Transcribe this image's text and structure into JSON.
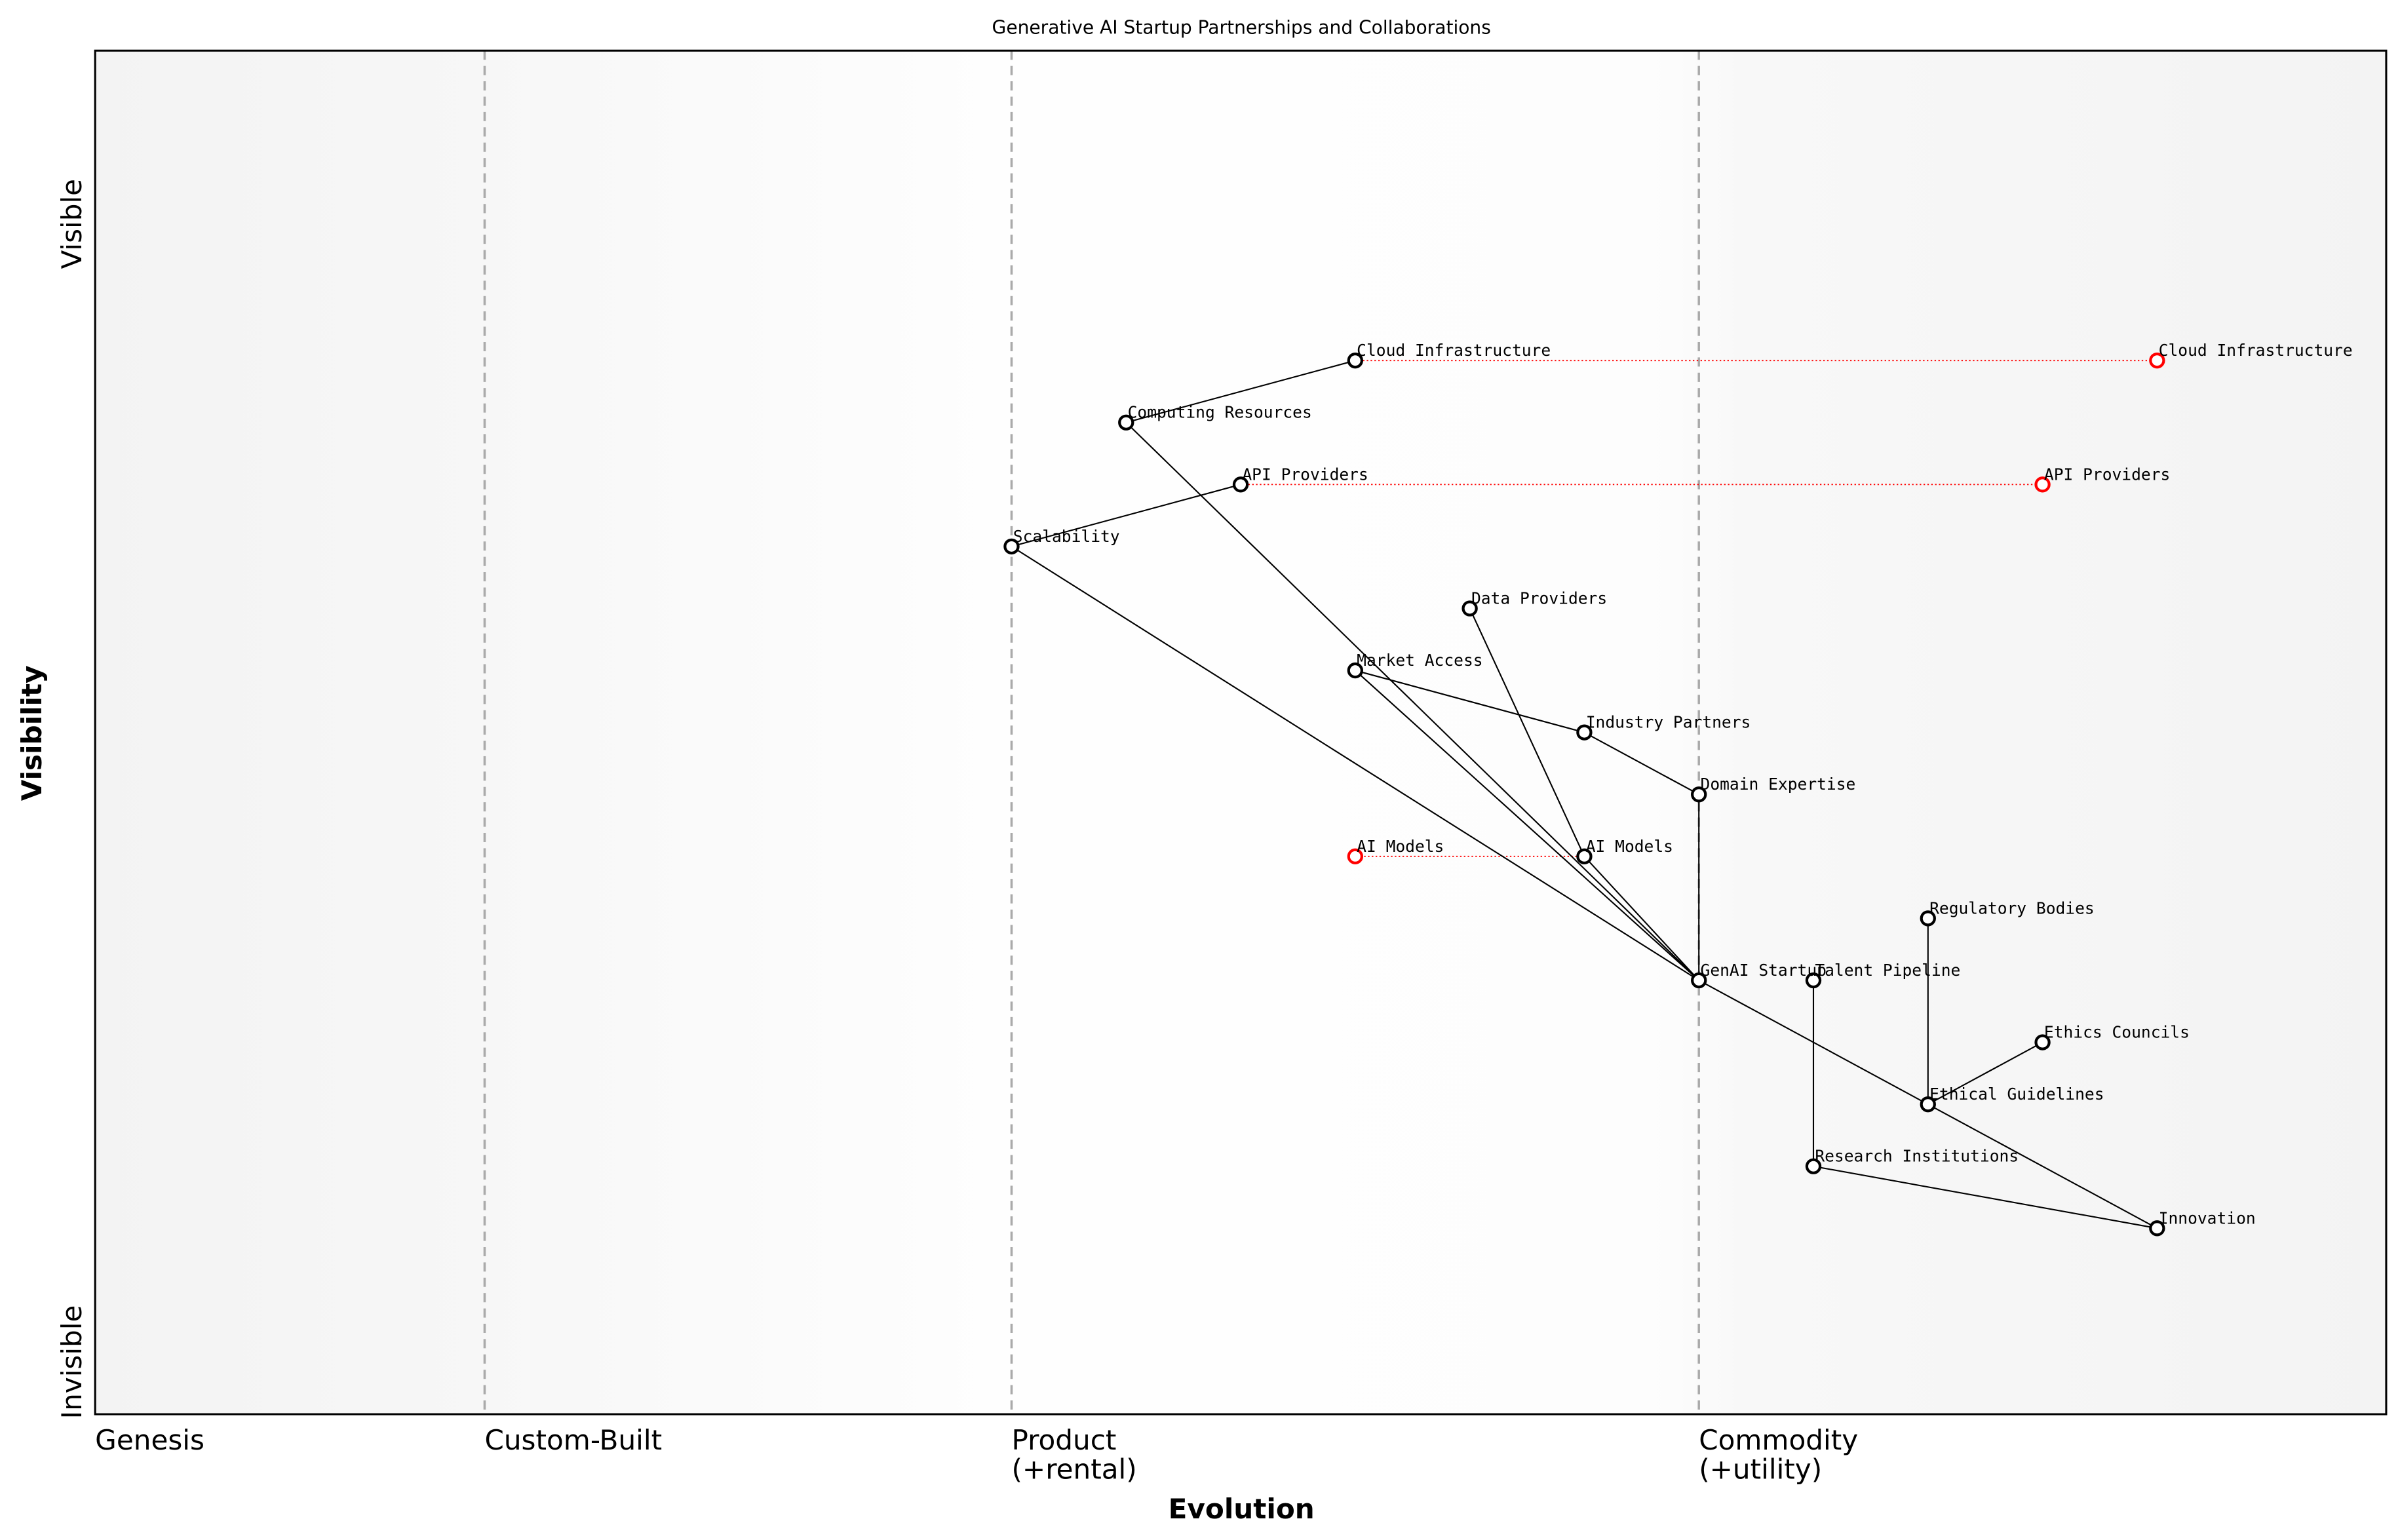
{
  "chart_data": {
    "type": "wardley-map",
    "title": "Generative AI Startup Partnerships and Collaborations",
    "xlabel": "Evolution",
    "ylabel": "Visibility",
    "xlim": [
      0,
      1
    ],
    "ylim": [
      0,
      1.1
    ],
    "y_ends": {
      "top": "Visible",
      "bottom": "Invisible"
    },
    "stages": [
      {
        "label": "Genesis",
        "x": 0
      },
      {
        "label": "Custom-Built",
        "x": 0.17
      },
      {
        "label": "Product\n(+rental)",
        "x": 0.4
      },
      {
        "label": "Commodity\n(+utility)",
        "x": 0.7
      }
    ],
    "components": [
      {
        "name": "Cloud Infrastructure",
        "x": 0.55,
        "y": 0.85
      },
      {
        "name": "Computing Resources",
        "x": 0.45,
        "y": 0.8
      },
      {
        "name": "API Providers",
        "x": 0.5,
        "y": 0.75
      },
      {
        "name": "Scalability",
        "x": 0.4,
        "y": 0.7
      },
      {
        "name": "Data Providers",
        "x": 0.6,
        "y": 0.65
      },
      {
        "name": "Market Access",
        "x": 0.55,
        "y": 0.6
      },
      {
        "name": "Industry Partners",
        "x": 0.65,
        "y": 0.55
      },
      {
        "name": "Domain Expertise",
        "x": 0.7,
        "y": 0.5
      },
      {
        "name": "AI Models",
        "x": 0.65,
        "y": 0.45
      },
      {
        "name": "Regulatory Bodies",
        "x": 0.8,
        "y": 0.4
      },
      {
        "name": "GenAI Startup",
        "x": 0.7,
        "y": 0.35
      },
      {
        "name": "Talent Pipeline",
        "x": 0.75,
        "y": 0.35
      },
      {
        "name": "Ethics Councils",
        "x": 0.85,
        "y": 0.3
      },
      {
        "name": "Ethical Guidelines",
        "x": 0.8,
        "y": 0.25
      },
      {
        "name": "Research Institutions",
        "x": 0.75,
        "y": 0.2
      },
      {
        "name": "Innovation",
        "x": 0.9,
        "y": 0.15
      }
    ],
    "links": [
      [
        "Cloud Infrastructure",
        "Computing Resources"
      ],
      [
        "Computing Resources",
        "GenAI Startup"
      ],
      [
        "API Providers",
        "Scalability"
      ],
      [
        "Scalability",
        "GenAI Startup"
      ],
      [
        "Market Access",
        "GenAI Startup"
      ],
      [
        "Market Access",
        "Industry Partners"
      ],
      [
        "Industry Partners",
        "Domain Expertise"
      ],
      [
        "Domain Expertise",
        "GenAI Startup"
      ],
      [
        "Data Providers",
        "AI Models"
      ],
      [
        "AI Models",
        "GenAI Startup"
      ],
      [
        "GenAI Startup",
        "Ethical Guidelines"
      ],
      [
        "Ethical Guidelines",
        "Innovation"
      ],
      [
        "Regulatory Bodies",
        "Ethical Guidelines"
      ],
      [
        "Ethical Guidelines",
        "Ethics Councils"
      ],
      [
        "Talent Pipeline",
        "Research Institutions"
      ],
      [
        "Research Institutions",
        "Innovation"
      ]
    ],
    "evolutions": [
      {
        "name": "Cloud Infrastructure",
        "from_x": 0.55,
        "to_x": 0.9,
        "y": 0.85
      },
      {
        "name": "API Providers",
        "from_x": 0.5,
        "to_x": 0.85,
        "y": 0.75
      },
      {
        "name": "AI Models",
        "from_x": 0.65,
        "to_x": 0.55,
        "y": 0.45
      }
    ],
    "colors": {
      "component": "#000000",
      "evolution": "#ff0000",
      "stage_line": "#aaaaaa"
    },
    "grid": false
  }
}
